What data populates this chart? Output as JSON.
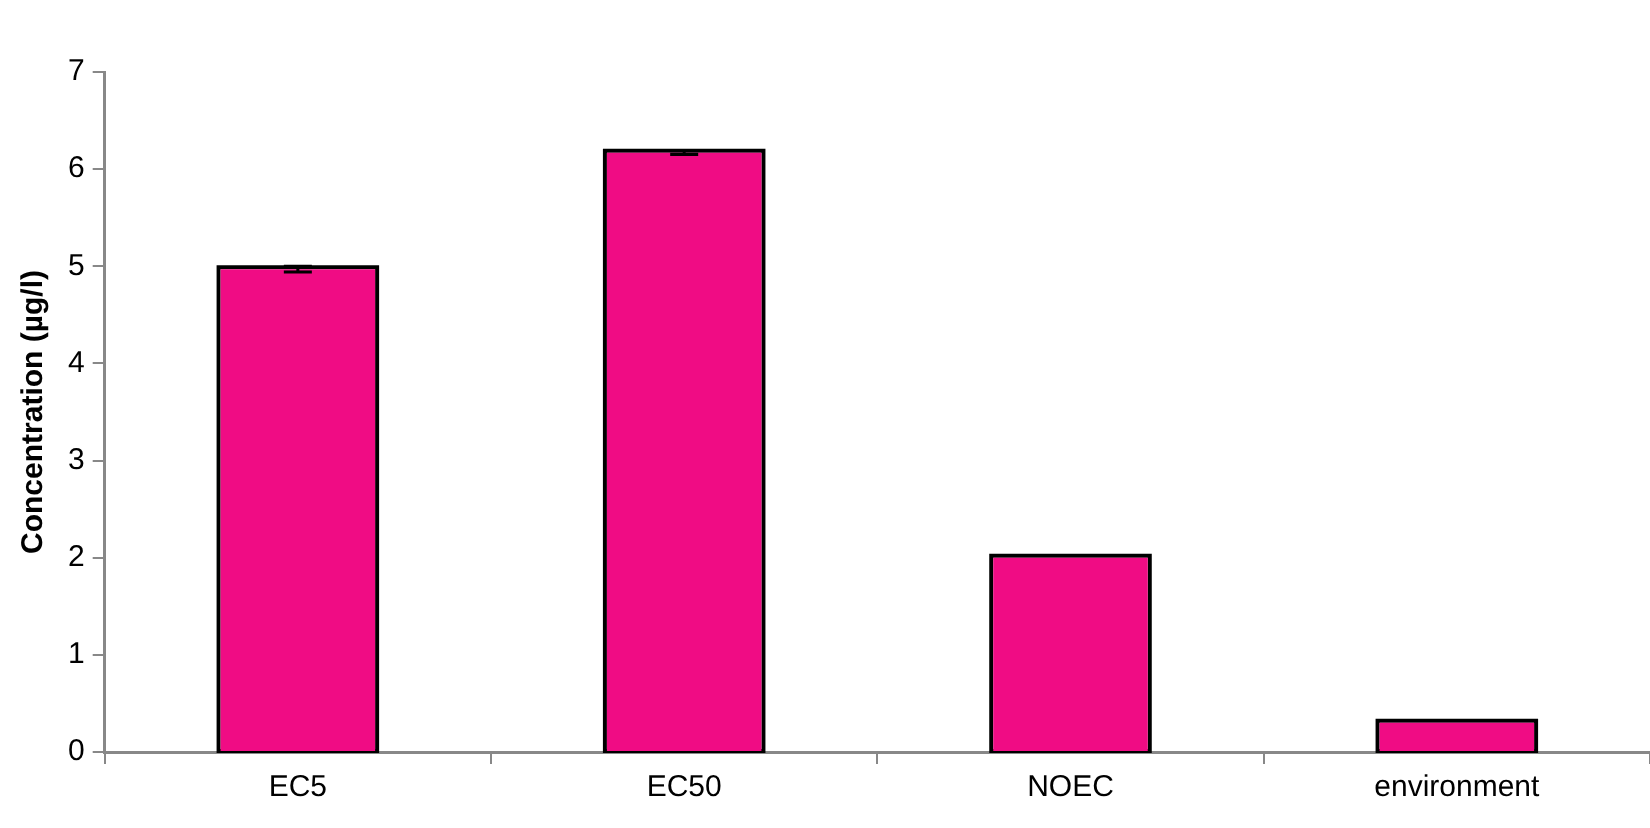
{
  "chart_data": {
    "type": "bar",
    "ylabel": "Concentration (µg/l)",
    "categories": [
      "EC5",
      "EC50",
      "NOEC",
      "environment"
    ],
    "values": [
      4.97,
      6.17,
      2.0,
      0.3
    ],
    "errors": [
      0.03,
      0.02,
      null,
      null
    ],
    "color": "#f00c84",
    "ylim": [
      0,
      7
    ],
    "yticks": [
      0,
      1,
      2,
      3,
      4,
      5,
      6,
      7
    ],
    "grid": false,
    "legend": false
  }
}
